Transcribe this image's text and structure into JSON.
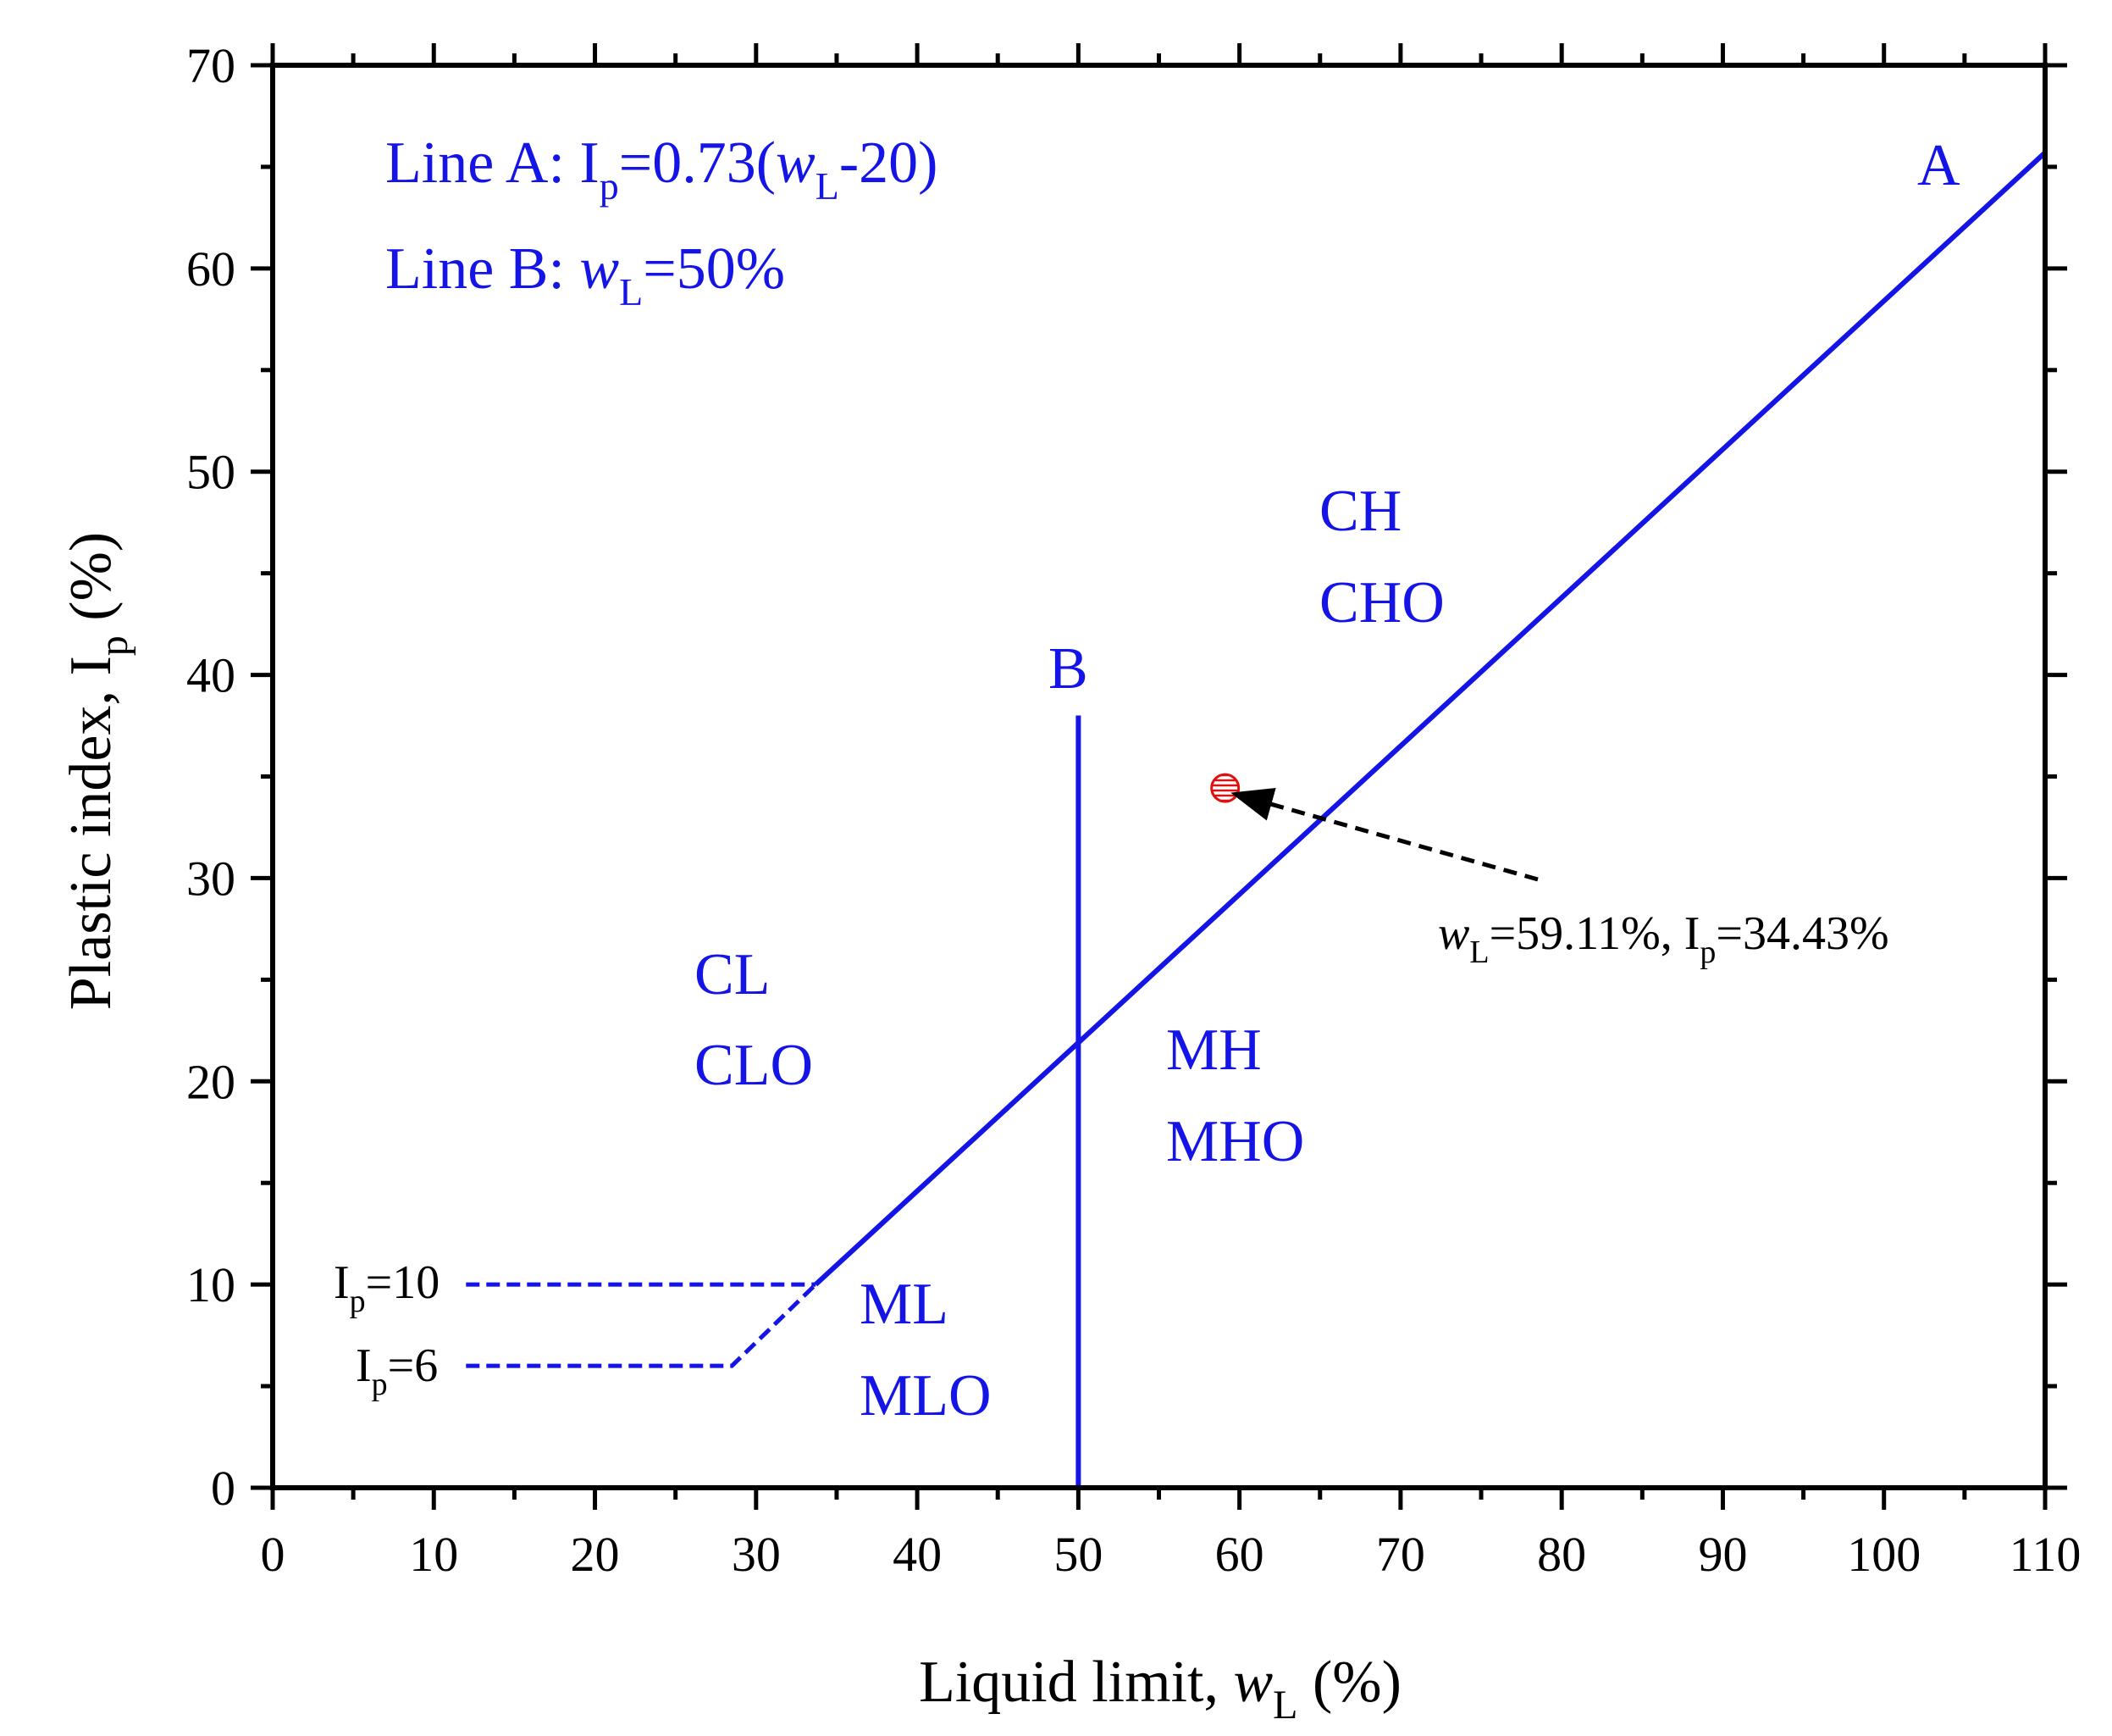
{
  "chart_data": {
    "type": "line",
    "title": "",
    "xlabel": "Liquid limit, w_L (%)",
    "ylabel": "Plastic index, I_p (%)",
    "xlim": [
      0,
      110
    ],
    "ylim": [
      0,
      70
    ],
    "xticks": [
      0,
      10,
      20,
      30,
      40,
      50,
      60,
      70,
      80,
      90,
      100,
      110
    ],
    "yticks": [
      0,
      10,
      20,
      30,
      40,
      50,
      60,
      70
    ],
    "series": [
      {
        "name": "Line A",
        "style": "solid",
        "color": "#1414e6",
        "x": [
          33.7,
          110
        ],
        "y": [
          10,
          65.7
        ]
      },
      {
        "name": "Line B",
        "style": "solid",
        "color": "#1414e6",
        "x": [
          50,
          50
        ],
        "y": [
          0,
          38
        ]
      },
      {
        "name": "Ip=10 boundary",
        "style": "dashed",
        "color": "#1414e6",
        "x": [
          12,
          33.7
        ],
        "y": [
          10,
          10
        ]
      },
      {
        "name": "Ip=6 boundary",
        "style": "dashed",
        "color": "#1414e6",
        "x": [
          12,
          28.5,
          33.7
        ],
        "y": [
          6,
          6,
          10
        ]
      }
    ],
    "points": [
      {
        "x": 59.11,
        "y": 34.43,
        "color": "#e01010"
      }
    ],
    "line_labels": {
      "a": "A",
      "b": "B"
    },
    "equations": {
      "line_a": {
        "prefix": "Line A: I",
        "sub": "p",
        "mid": "=0.73(",
        "var": "w",
        "var_sub": "L",
        "suffix": "-20)"
      },
      "line_b": {
        "prefix": "Line B: ",
        "var": "w",
        "var_sub": "L",
        "suffix": "=50%"
      }
    },
    "boundary_labels": {
      "ip10": {
        "main": "I",
        "sub": "p",
        "rest": "=10"
      },
      "ip6": {
        "main": "I",
        "sub": "p",
        "rest": "=6"
      }
    },
    "zones": [
      {
        "line1": "CH",
        "line2": "CHO"
      },
      {
        "line1": "CL",
        "line2": "CLO"
      },
      {
        "line1": "MH",
        "line2": "MHO"
      },
      {
        "line1": "ML",
        "line2": "MLO"
      }
    ],
    "point_annotation": {
      "var": "w",
      "var_sub": "L",
      "mid": "=59.11%, I",
      "sub": "p",
      "rest": "=34.43%"
    },
    "axis_titles": {
      "x": {
        "main": "Liquid limit, ",
        "var": "w",
        "sub": "L",
        "rest": " (%)"
      },
      "y": {
        "main": "Plastic index, I",
        "sub": "p",
        "rest": " (%)"
      }
    }
  }
}
